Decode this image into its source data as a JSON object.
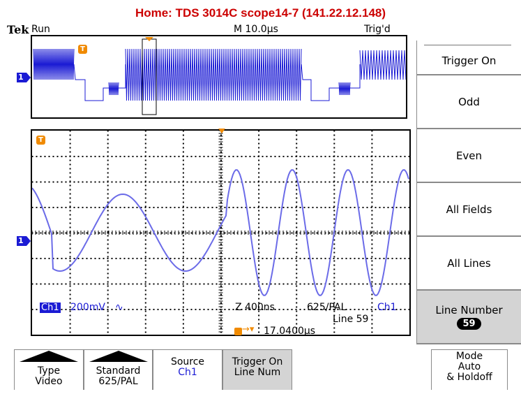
{
  "page_title": "Home:  TDS 3014C  scope14-7  (141.22.12.148)",
  "status": {
    "brand": "Tek",
    "run_state": "Run",
    "timebase": "M 10.0µs",
    "trigger_state": "Trig'd"
  },
  "channel_marker": "1",
  "trigger_marker": "T",
  "readouts": {
    "channel": "Ch1",
    "volts_per_div": "200mV",
    "coupling_symbol": "∿",
    "zoom": "Z 400ns",
    "standard": "625/PAL",
    "trigger_source": "Ch1",
    "line": "Line 59",
    "trigger_position": "17.0400µs"
  },
  "side_menu": {
    "header": "Trigger On",
    "items": [
      {
        "label": "Odd"
      },
      {
        "label": "Even"
      },
      {
        "label": "All Fields"
      },
      {
        "label": "All Lines"
      },
      {
        "label": "Line Number",
        "value": "59"
      }
    ]
  },
  "bottom_menu": {
    "type": {
      "line1": "Type",
      "line2": "Video"
    },
    "standard": {
      "line1": "Standard",
      "line2": "625/PAL"
    },
    "source": {
      "line1": "Source",
      "line2": "Ch1"
    },
    "trigger_on": {
      "line1": "Trigger On",
      "line2": "Line Num"
    },
    "mode": {
      "line1": "Mode",
      "line2": "Auto",
      "line3": "& Holdoff"
    }
  },
  "colors": {
    "title": "#cc0000",
    "trace": "#1b1bd4",
    "trigger_marker": "#f08a00",
    "selected_button": "#d4d4d4"
  }
}
